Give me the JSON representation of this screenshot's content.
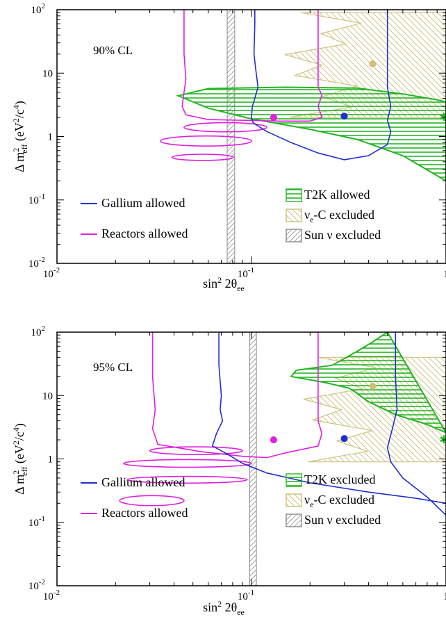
{
  "chart_data": [
    {
      "type": "line",
      "x_scale": "log",
      "y_scale": "log",
      "xlim": [
        0.01,
        1
      ],
      "ylim": [
        0.01,
        100
      ],
      "xlabel": {
        "base": "sin",
        "sup": "2",
        "mid": " 2θ",
        "sub": "ee"
      },
      "ylabel": {
        "pre": "Δ m",
        "sup": "2",
        "sub": "eff",
        "post1": " (eV",
        "sup2": "2",
        "post2": "/c",
        "sup3": "4",
        "post3": ")"
      },
      "x_ticks": [
        {
          "base": "10",
          "exp": "-2"
        },
        {
          "base": "10",
          "exp": "-1"
        },
        {
          "base": "1",
          "exp": ""
        }
      ],
      "y_ticks": [
        {
          "base": "10",
          "exp": "-2"
        },
        {
          "base": "10",
          "exp": "-1"
        },
        {
          "base": "1",
          "exp": ""
        },
        {
          "base": "10",
          "exp": ""
        },
        {
          "base": "10",
          "exp": "2"
        }
      ],
      "annotation": "90% CL",
      "legend_left": [
        {
          "label": "Gallium allowed",
          "color": "#1f2fd0"
        },
        {
          "label": "Reactors allowed",
          "color": "#e21ee0"
        }
      ],
      "legend_right": [
        {
          "label": "T2K allowed",
          "kind": "t2k",
          "color": "#22b522"
        },
        {
          "pre": "ν",
          "sub": "e",
          "post": "-C excluded",
          "kind": "nuc",
          "color": "#cdbf7a"
        },
        {
          "label": "Sun ν excluded",
          "kind": "sun",
          "color": "#888888"
        }
      ],
      "series": [
        {
          "label": "Gallium allowed",
          "color": "#1f2fd0",
          "curve": [
            [
              0.104,
              100
            ],
            [
              0.104,
              60
            ],
            [
              0.103,
              20
            ],
            [
              0.105,
              12
            ],
            [
              0.108,
              6
            ],
            [
              0.104,
              4
            ],
            [
              0.101,
              3
            ],
            [
              0.1,
              2
            ],
            [
              0.102,
              1.65
            ],
            [
              0.12,
              1.2
            ],
            [
              0.16,
              0.8
            ],
            [
              0.22,
              0.55
            ],
            [
              0.3,
              0.43
            ],
            [
              0.4,
              0.5
            ],
            [
              0.5,
              0.75
            ],
            [
              0.52,
              1.2
            ],
            [
              0.5,
              1.8
            ],
            [
              0.52,
              3
            ],
            [
              0.5,
              6
            ],
            [
              0.5,
              20
            ],
            [
              0.5,
              100
            ]
          ]
        },
        {
          "label": "Reactors allowed",
          "color": "#e21ee0",
          "curve": [
            [
              0.045,
              100
            ],
            [
              0.045,
              20
            ],
            [
              0.046,
              8
            ],
            [
              0.045,
              5
            ],
            [
              0.044,
              3
            ],
            [
              0.046,
              2.2
            ],
            [
              0.06,
              1.85
            ],
            [
              0.14,
              1.75
            ],
            [
              0.2,
              1.75
            ],
            [
              0.23,
              2
            ],
            [
              0.22,
              3
            ],
            [
              0.23,
              4.5
            ],
            [
              0.22,
              6
            ],
            [
              0.22,
              20
            ],
            [
              0.22,
              100
            ]
          ],
          "islands": [
            {
              "cx": 0.07,
              "cy": 1.4,
              "rx_lo": 0.045,
              "rx_hi": 0.12,
              "ry": 1.18
            },
            {
              "cx": 0.06,
              "cy": 0.85,
              "rx_lo": 0.034,
              "rx_hi": 0.1,
              "ry": 1.2
            },
            {
              "cx": 0.055,
              "cy": 0.47,
              "rx_lo": 0.039,
              "rx_hi": 0.081,
              "ry": 1.12
            }
          ]
        },
        {
          "label": "T2K allowed",
          "color": "#22b522",
          "outline": [
            [
              1,
              0.2
            ],
            [
              0.6,
              0.5
            ],
            [
              0.35,
              0.9
            ],
            [
              0.2,
              1.3
            ],
            [
              0.1,
              1.9
            ],
            [
              0.06,
              2.8
            ],
            [
              0.042,
              4.4
            ],
            [
              0.06,
              5.7
            ],
            [
              0.15,
              6
            ],
            [
              0.35,
              5.8
            ],
            [
              0.6,
              4.7
            ],
            [
              0.9,
              3.8
            ],
            [
              1,
              3.5
            ]
          ],
          "hatch_y_range": [
            0.6,
            6
          ]
        },
        {
          "label": "νe-C excluded",
          "color": "#cdbf7a",
          "band_y_range": [
            2,
            90
          ],
          "band_x_from": 0.18
        },
        {
          "label": "Sun ν excluded",
          "color": "#888888",
          "band_x": [
            0.075,
            0.082
          ]
        }
      ],
      "best_fit_points": [
        {
          "x": 0.13,
          "y": 2,
          "color": "#e21ee0"
        },
        {
          "x": 0.3,
          "y": 2.1,
          "color": "#1f2fd0"
        },
        {
          "x": 0.42,
          "y": 14,
          "color": "#cdbf7a"
        },
        {
          "x": 1,
          "y": 2,
          "color": "#22b522",
          "shape": "star"
        }
      ]
    },
    {
      "type": "line",
      "x_scale": "log",
      "y_scale": "log",
      "xlim": [
        0.01,
        1
      ],
      "ylim": [
        0.01,
        100
      ],
      "xlabel": {
        "base": "sin",
        "sup": "2",
        "mid": " 2θ",
        "sub": "ee"
      },
      "ylabel": {
        "pre": "Δ m",
        "sup": "2",
        "sub": "eff",
        "post1": " (eV",
        "sup2": "2",
        "post2": "/c",
        "sup3": "4",
        "post3": ")"
      },
      "x_ticks": [
        {
          "base": "10",
          "exp": "-2"
        },
        {
          "base": "10",
          "exp": "-1"
        },
        {
          "base": "1",
          "exp": ""
        }
      ],
      "y_ticks": [
        {
          "base": "10",
          "exp": "-2"
        },
        {
          "base": "10",
          "exp": "-1"
        },
        {
          "base": "1",
          "exp": ""
        },
        {
          "base": "10",
          "exp": ""
        },
        {
          "base": "10",
          "exp": "2"
        }
      ],
      "annotation": "95% CL",
      "legend_left": [
        {
          "label": "Gallium allowed",
          "color": "#1f2fd0"
        },
        {
          "label": "Reactors allowed",
          "color": "#e21ee0"
        }
      ],
      "legend_right": [
        {
          "label": "T2K excluded",
          "kind": "t2k",
          "color": "#22b522"
        },
        {
          "pre": "ν",
          "sub": "e",
          "post": "-C excluded",
          "kind": "nuc",
          "color": "#cdbf7a"
        },
        {
          "label": "Sun ν excluded",
          "kind": "sun",
          "color": "#888888"
        }
      ],
      "series": [
        {
          "label": "Gallium allowed",
          "color": "#1f2fd0",
          "curve": [
            [
              0.068,
              100
            ],
            [
              0.068,
              30
            ],
            [
              0.07,
              10
            ],
            [
              0.069,
              6
            ],
            [
              0.071,
              4
            ],
            [
              0.066,
              2.5
            ],
            [
              0.063,
              1.6
            ],
            [
              0.075,
              1.2
            ],
            [
              0.09,
              0.85
            ],
            [
              0.12,
              0.6
            ],
            [
              0.2,
              0.42
            ],
            [
              0.4,
              0.3
            ],
            [
              0.7,
              0.24
            ],
            [
              1,
              0.2
            ]
          ],
          "curve2": [
            [
              0.55,
              100
            ],
            [
              0.55,
              20
            ],
            [
              0.56,
              6
            ],
            [
              0.53,
              3
            ],
            [
              0.5,
              1.5
            ],
            [
              0.52,
              0.9
            ],
            [
              0.6,
              0.5
            ],
            [
              0.8,
              0.25
            ],
            [
              1,
              0.13
            ]
          ]
        },
        {
          "label": "Reactors allowed",
          "color": "#e21ee0",
          "curve": [
            [
              0.031,
              100
            ],
            [
              0.031,
              20
            ],
            [
              0.032,
              6
            ],
            [
              0.031,
              3
            ],
            [
              0.033,
              1.7
            ],
            [
              0.055,
              1.3
            ],
            [
              0.09,
              1.1
            ],
            [
              0.12,
              1.05
            ],
            [
              0.15,
              1.25
            ],
            [
              0.22,
              1.6
            ],
            [
              0.23,
              2.5
            ],
            [
              0.22,
              4
            ],
            [
              0.22,
              20
            ],
            [
              0.22,
              100
            ]
          ],
          "islands": [
            {
              "cx": 0.05,
              "cy": 1.35,
              "rx_lo": 0.03,
              "rx_hi": 0.09,
              "ry": 1.15
            },
            {
              "cx": 0.045,
              "cy": 0.85,
              "rx_lo": 0.022,
              "rx_hi": 0.1,
              "ry": 1.15
            },
            {
              "cx": 0.045,
              "cy": 0.47,
              "rx_lo": 0.023,
              "rx_hi": 0.095,
              "ry": 1.13
            },
            {
              "cx": 0.03,
              "cy": 0.22,
              "rx_lo": 0.021,
              "rx_hi": 0.045,
              "ry": 1.2
            }
          ]
        },
        {
          "label": "T2K excluded",
          "color": "#22b522",
          "outline": [
            [
              1,
              2.6
            ],
            [
              0.8,
              3.5
            ],
            [
              0.55,
              5
            ],
            [
              0.4,
              8
            ],
            [
              0.32,
              13
            ],
            [
              0.24,
              16
            ],
            [
              0.16,
              20
            ],
            [
              0.17,
              25
            ],
            [
              0.26,
              30
            ],
            [
              0.35,
              50
            ],
            [
              0.42,
              70
            ],
            [
              0.5,
              100
            ]
          ],
          "hatch_y_range": [
            3,
            100
          ]
        },
        {
          "label": "νe-C excluded",
          "color": "#cdbf7a",
          "band_y_range": [
            0.9,
            40
          ],
          "band_x_from": 0.22
        },
        {
          "label": "Sun ν excluded",
          "color": "#888888",
          "band_x": [
            0.098,
            0.106
          ]
        }
      ],
      "best_fit_points": [
        {
          "x": 0.13,
          "y": 2,
          "color": "#e21ee0"
        },
        {
          "x": 0.3,
          "y": 2.1,
          "color": "#1f2fd0"
        },
        {
          "x": 0.42,
          "y": 14,
          "color": "#cdbf7a"
        },
        {
          "x": 1,
          "y": 2,
          "color": "#22b522",
          "shape": "star"
        }
      ]
    }
  ]
}
